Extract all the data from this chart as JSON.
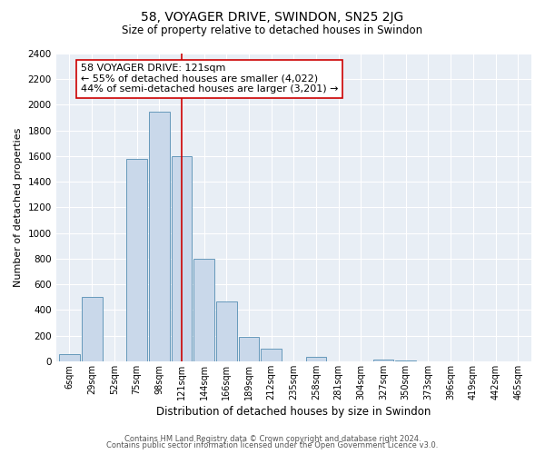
{
  "title": "58, VOYAGER DRIVE, SWINDON, SN25 2JG",
  "subtitle": "Size of property relative to detached houses in Swindon",
  "xlabel": "Distribution of detached houses by size in Swindon",
  "ylabel": "Number of detached properties",
  "bar_labels": [
    "6sqm",
    "29sqm",
    "52sqm",
    "75sqm",
    "98sqm",
    "121sqm",
    "144sqm",
    "166sqm",
    "189sqm",
    "212sqm",
    "235sqm",
    "258sqm",
    "281sqm",
    "304sqm",
    "327sqm",
    "350sqm",
    "373sqm",
    "396sqm",
    "419sqm",
    "442sqm",
    "465sqm"
  ],
  "bar_heights": [
    55,
    500,
    0,
    1580,
    1950,
    1600,
    800,
    470,
    190,
    95,
    0,
    35,
    0,
    0,
    15,
    5,
    0,
    0,
    0,
    0,
    0
  ],
  "bar_color": "#c9d8ea",
  "bar_edge_color": "#6699bb",
  "vline_x": 5,
  "vline_color": "#cc0000",
  "annotation_title": "58 VOYAGER DRIVE: 121sqm",
  "annotation_line1": "← 55% of detached houses are smaller (4,022)",
  "annotation_line2": "44% of semi-detached houses are larger (3,201) →",
  "annotation_box_facecolor": "#ffffff",
  "annotation_box_edgecolor": "#cc0000",
  "ylim": [
    0,
    2400
  ],
  "yticks": [
    0,
    200,
    400,
    600,
    800,
    1000,
    1200,
    1400,
    1600,
    1800,
    2000,
    2200,
    2400
  ],
  "footer1": "Contains HM Land Registry data © Crown copyright and database right 2024.",
  "footer2": "Contains public sector information licensed under the Open Government Licence v3.0.",
  "bg_color": "#ffffff",
  "plot_bg_color": "#e8eef5",
  "grid_color": "#ffffff"
}
